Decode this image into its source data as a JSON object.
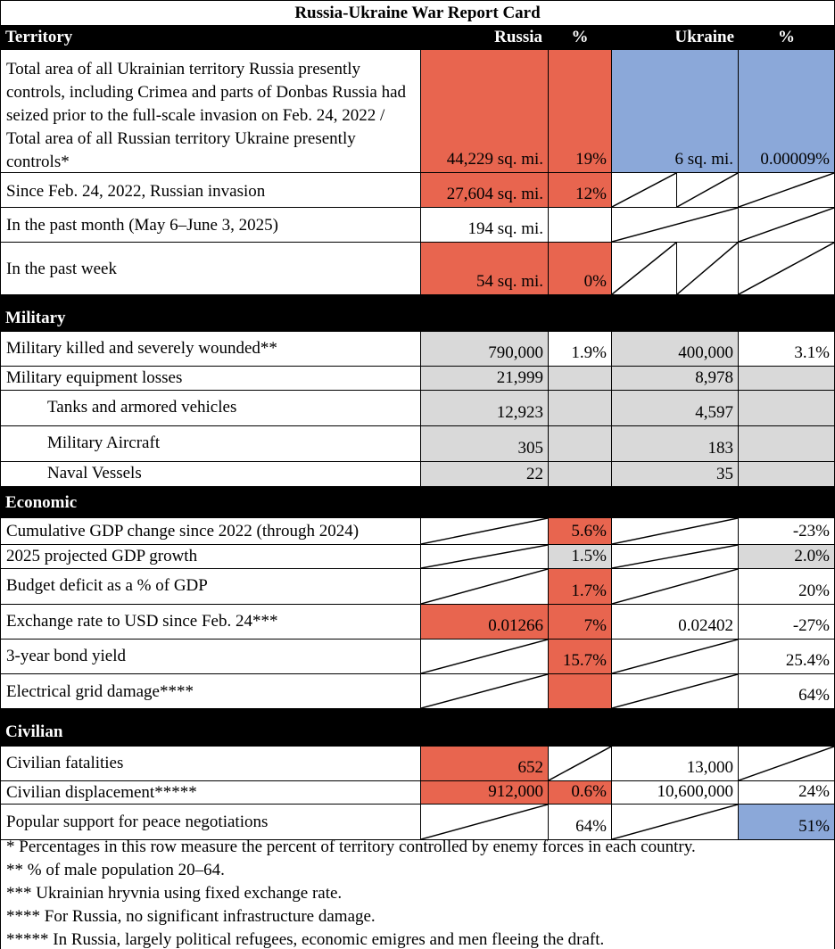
{
  "title": "Russia-Ukraine War Report Card",
  "colors": {
    "russia": "#e8654f",
    "ukraine": "#8ba8d9",
    "gray": "#d9d9d9",
    "header": "#000000"
  },
  "territory": {
    "header": {
      "label": "Territory",
      "russia": "Russia",
      "pct1": "%",
      "ukraine": "Ukraine",
      "pct2": "%"
    },
    "rows": [
      {
        "label": "Total area of all Ukrainian territory Russia presently controls, including Crimea and parts of Donbas Russia had seized prior to the full-scale invasion on Feb. 24, 2022 / Total area of all Russian territory Ukraine presently controls*",
        "russia": "44,229  sq. mi.",
        "russia_pct": "19%",
        "ukraine": "6  sq. mi.",
        "ukraine_pct": "0.00009%"
      },
      {
        "label": "Since Feb. 24, 2022, Russian invasion",
        "russia": "27,604  sq. mi.",
        "russia_pct": "12%"
      },
      {
        "label": "In the past month (May 6–June 3, 2025)",
        "russia": "194  sq. mi."
      },
      {
        "label": "In the past week",
        "russia": "54  sq. mi.",
        "russia_pct": "0%"
      }
    ]
  },
  "military": {
    "header": "Military",
    "rows": [
      {
        "label": "Military killed and severely wounded**",
        "russia": "790,000",
        "russia_pct": "1.9%",
        "ukraine": "400,000",
        "ukraine_pct": "3.1%"
      },
      {
        "label": "Military equipment losses",
        "russia": "21,999",
        "ukraine": "8,978"
      },
      {
        "label": "Tanks and armored vehicles",
        "russia": "12,923",
        "ukraine": "4,597"
      },
      {
        "label": "Military Aircraft",
        "russia": "305",
        "ukraine": "183"
      },
      {
        "label": "Naval Vessels",
        "russia": "22",
        "ukraine": "35"
      }
    ]
  },
  "economic": {
    "header": "Economic",
    "rows": [
      {
        "label": "Cumulative GDP change since 2022 (through 2024)",
        "russia_pct": "5.6%",
        "ukraine_pct": "-23%"
      },
      {
        "label": "2025 projected GDP growth",
        "russia_pct": "1.5%",
        "ukraine_pct": "2.0%"
      },
      {
        "label": "Budget deficit as a % of GDP",
        "russia_pct": "1.7%",
        "ukraine_pct": "20%"
      },
      {
        "label": "Exchange rate to USD since Feb. 24***",
        "russia": "0.01266",
        "russia_pct": "7%",
        "ukraine": "0.02402",
        "ukraine_pct": "-27%"
      },
      {
        "label": "3-year bond yield",
        "russia_pct": "15.7%",
        "ukraine_pct": "25.4%"
      },
      {
        "label": "Electrical grid damage****",
        "ukraine_pct": "64%"
      }
    ]
  },
  "civilian": {
    "header": "Civilian",
    "rows": [
      {
        "label": "Civilian fatalities",
        "russia": "652",
        "ukraine": "13,000"
      },
      {
        "label": "Civilian displacement*****",
        "russia": "912,000",
        "russia_pct": "0.6%",
        "ukraine": "10,600,000",
        "ukraine_pct": "24%"
      },
      {
        "label": "Popular support for peace negotiations",
        "russia_pct": "64%",
        "ukraine_pct": "51%"
      }
    ]
  },
  "footnotes": [
    "* Percentages in this row measure the percent of territory controlled by enemy forces in each country.",
    "** % of male population 20–64.",
    "*** Ukrainian hryvnia using fixed exchange rate.",
    "**** For Russia, no significant infrastructure damage.",
    "***** In Russia, largely political refugees, economic emigres and men fleeing the draft."
  ]
}
